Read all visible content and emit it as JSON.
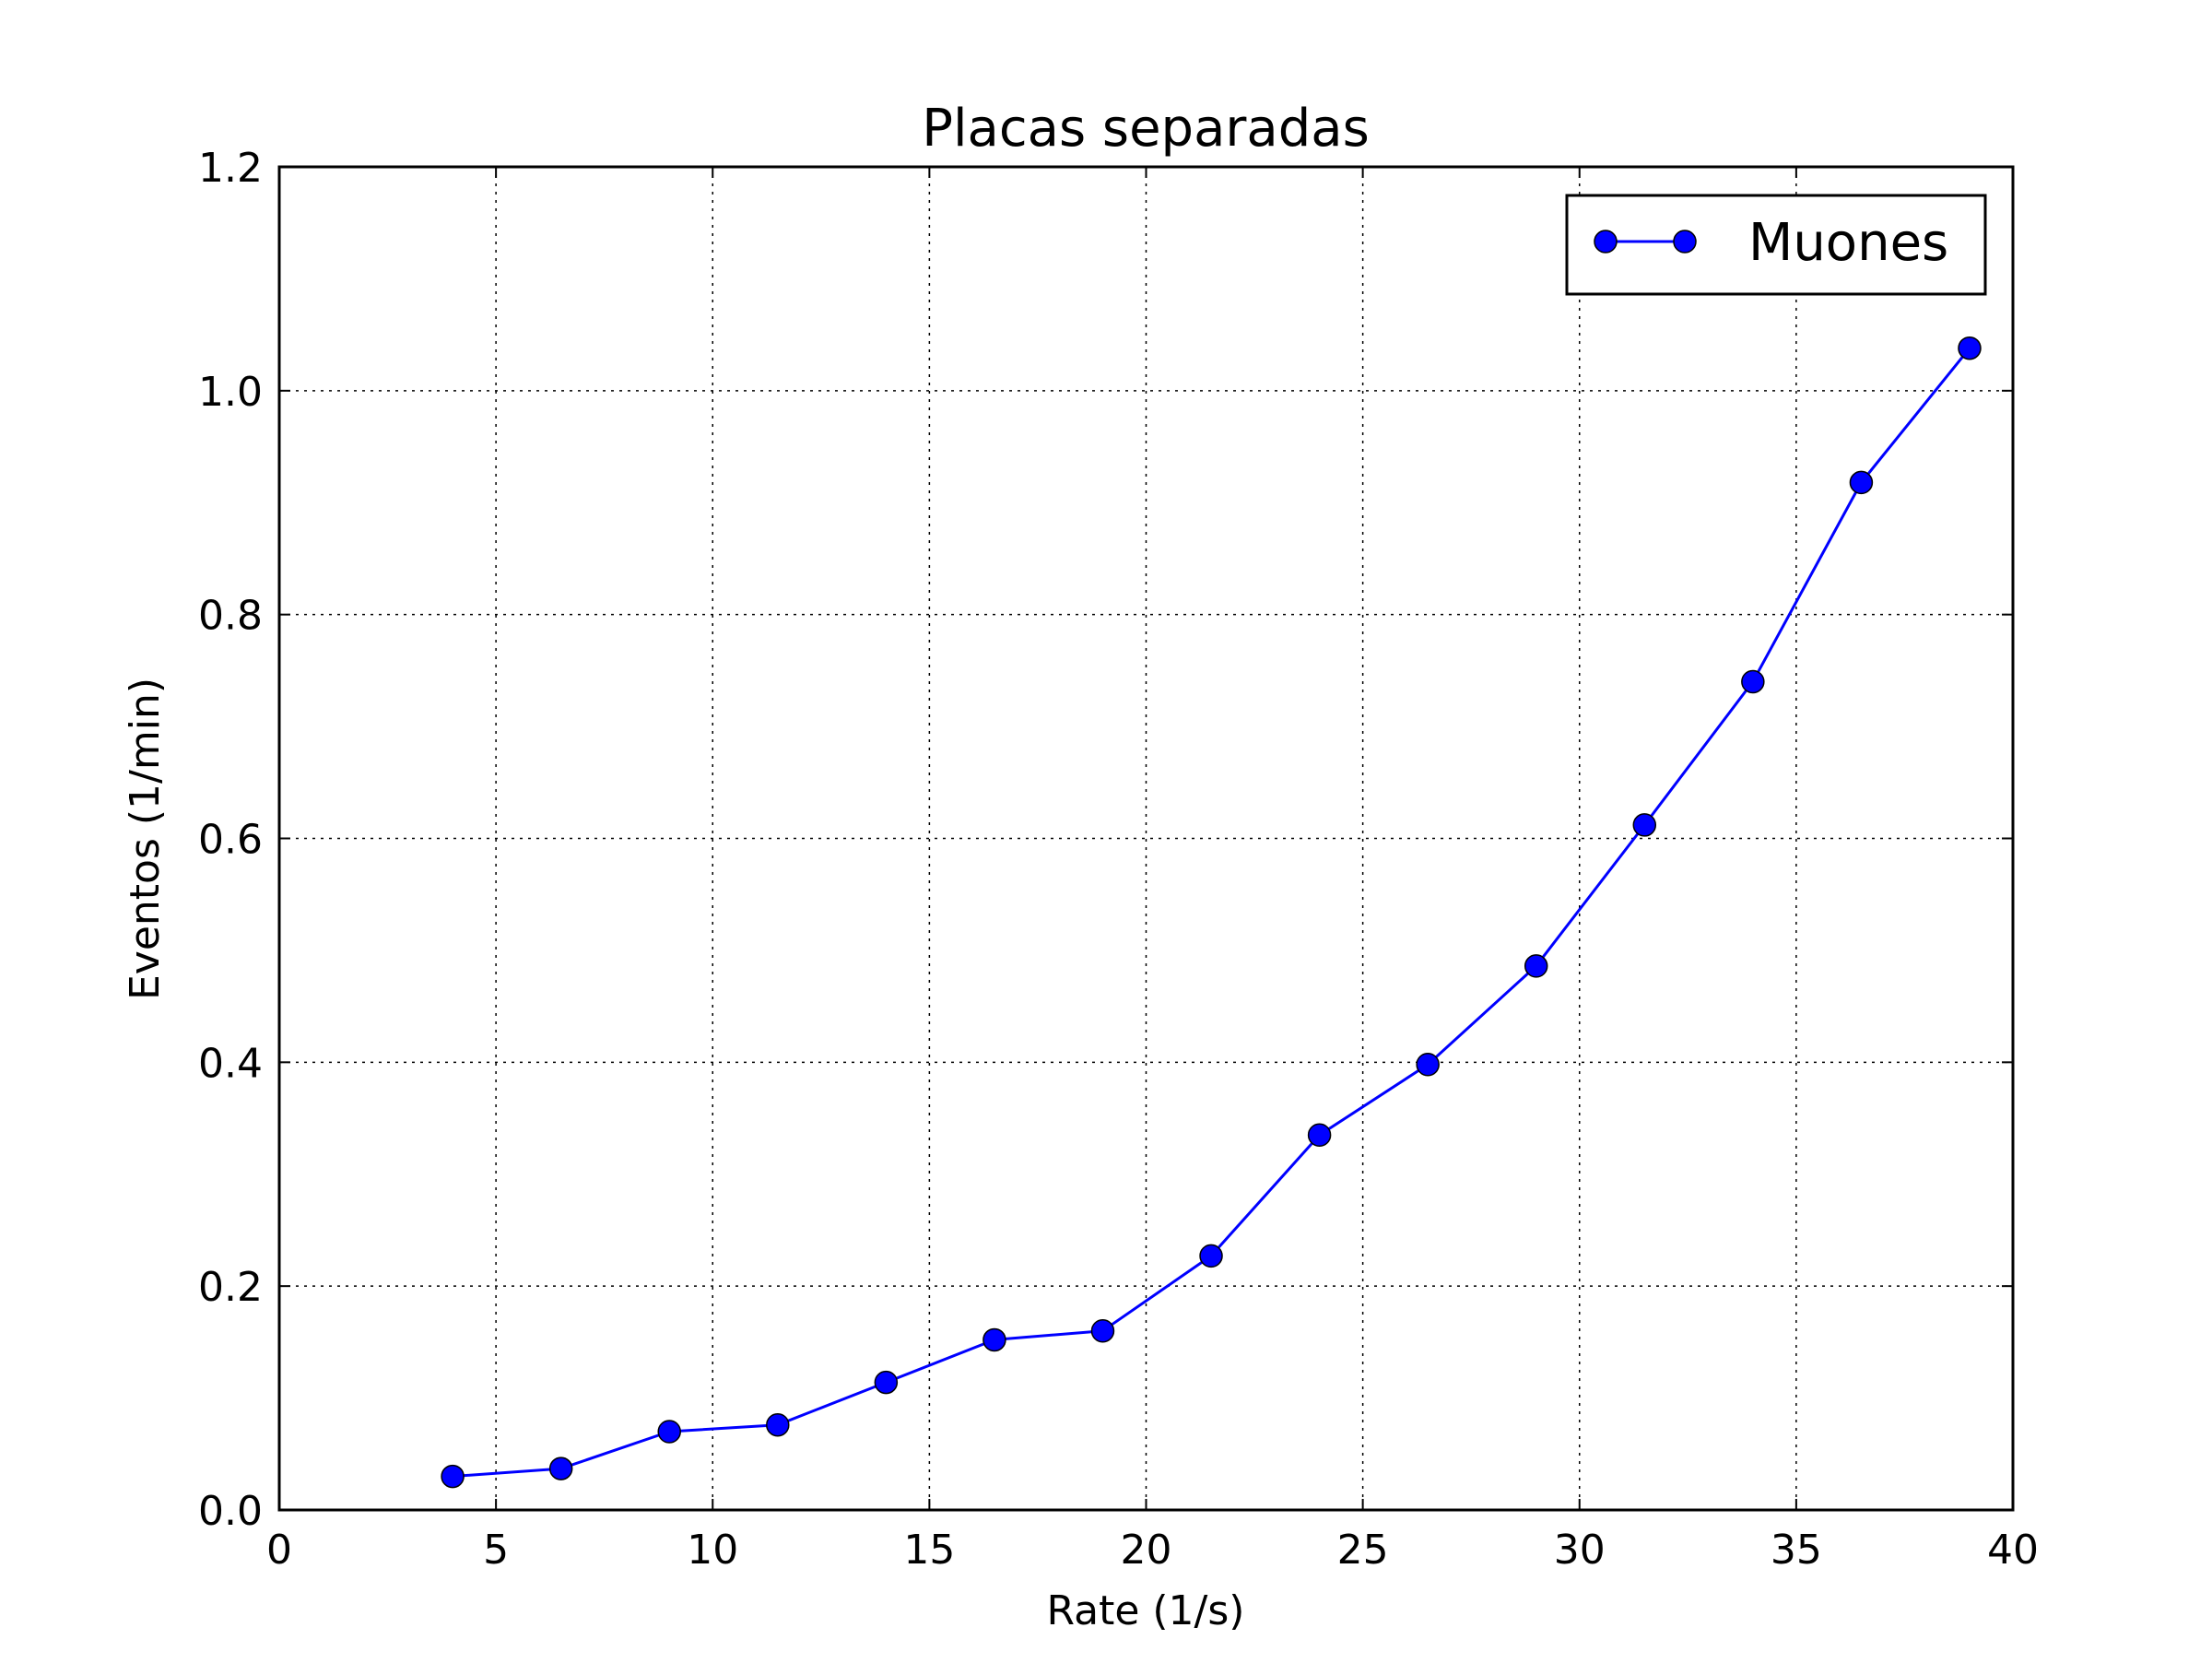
{
  "chart_data": {
    "type": "line",
    "title": "Placas separadas",
    "xlabel": "Rate (1/s)",
    "ylabel": "Eventos (1/min)",
    "xlim": [
      0,
      40
    ],
    "ylim": [
      0,
      1.2
    ],
    "x_ticks": [
      0,
      5,
      10,
      15,
      20,
      25,
      30,
      35,
      40
    ],
    "x_tick_labels": [
      "0",
      "5",
      "10",
      "15",
      "20",
      "25",
      "30",
      "35",
      "40"
    ],
    "y_ticks": [
      0,
      0.2,
      0.4,
      0.6,
      0.8,
      1.0,
      1.2
    ],
    "y_tick_labels": [
      "0.0",
      "0.2",
      "0.4",
      "0.6",
      "0.8",
      "1.0",
      "1.2"
    ],
    "grid": true,
    "legend_position": "top-right",
    "series": [
      {
        "name": "Muones",
        "color": "#0000ff",
        "marker": "circle",
        "x": [
          4,
          6.5,
          9,
          11.5,
          14,
          16.5,
          19,
          21.5,
          24,
          26.5,
          29,
          31.5,
          34,
          36.5,
          39
        ],
        "y": [
          0.03,
          0.037,
          0.07,
          0.076,
          0.114,
          0.152,
          0.16,
          0.227,
          0.335,
          0.398,
          0.486,
          0.612,
          0.74,
          0.918,
          1.038
        ]
      }
    ]
  }
}
